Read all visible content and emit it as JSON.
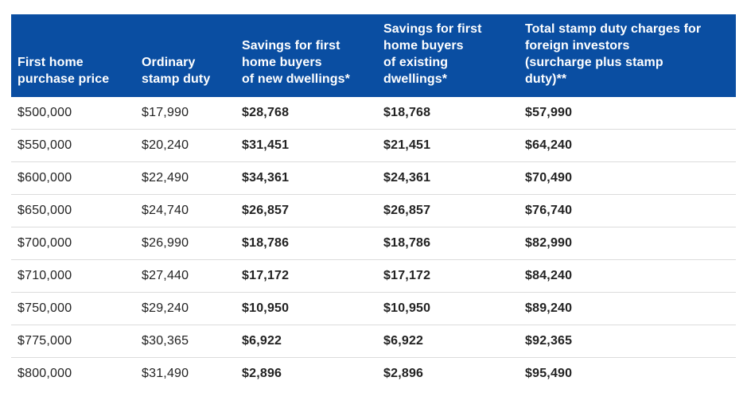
{
  "table": {
    "headers": [
      "First home purchase price",
      "Ordinary stamp duty",
      "Savings for first home buyers of new dwellings*",
      "Savings for first home buyers of existing dwellings*",
      "Total stamp duty charges for foreign investors (surcharge plus stamp duty)**"
    ],
    "header_lines": [
      [
        "First home",
        "purchase price"
      ],
      [
        "Ordinary",
        "stamp duty"
      ],
      [
        "Savings for first",
        "home buyers",
        "of new dwellings*"
      ],
      [
        "Savings for first",
        "home buyers",
        "of existing",
        "dwellings*"
      ],
      [
        "Total stamp duty charges for",
        "foreign investors",
        "(surcharge plus stamp",
        "duty)**"
      ]
    ],
    "header_color": "#0a4ea2",
    "rows": [
      [
        "$500,000",
        "$17,990",
        "$28,768",
        "$18,768",
        "$57,990"
      ],
      [
        "$550,000",
        "$20,240",
        "$31,451",
        "$21,451",
        "$64,240"
      ],
      [
        "$600,000",
        "$22,490",
        "$34,361",
        "$24,361",
        "$70,490"
      ],
      [
        "$650,000",
        "$24,740",
        "$26,857",
        "$26,857",
        "$76,740"
      ],
      [
        "$700,000",
        "$26,990",
        "$18,786",
        "$18,786",
        "$82,990"
      ],
      [
        "$710,000",
        "$27,440",
        "$17,172",
        "$17,172",
        "$84,240"
      ],
      [
        "$750,000",
        "$29,240",
        "$10,950",
        "$10,950",
        "$89,240"
      ],
      [
        "$775,000",
        "$30,365",
        "$6,922",
        "$6,922",
        "$92,365"
      ],
      [
        "$800,000",
        "$31,490",
        "$2,896",
        "$2,896",
        "$95,490"
      ]
    ]
  }
}
